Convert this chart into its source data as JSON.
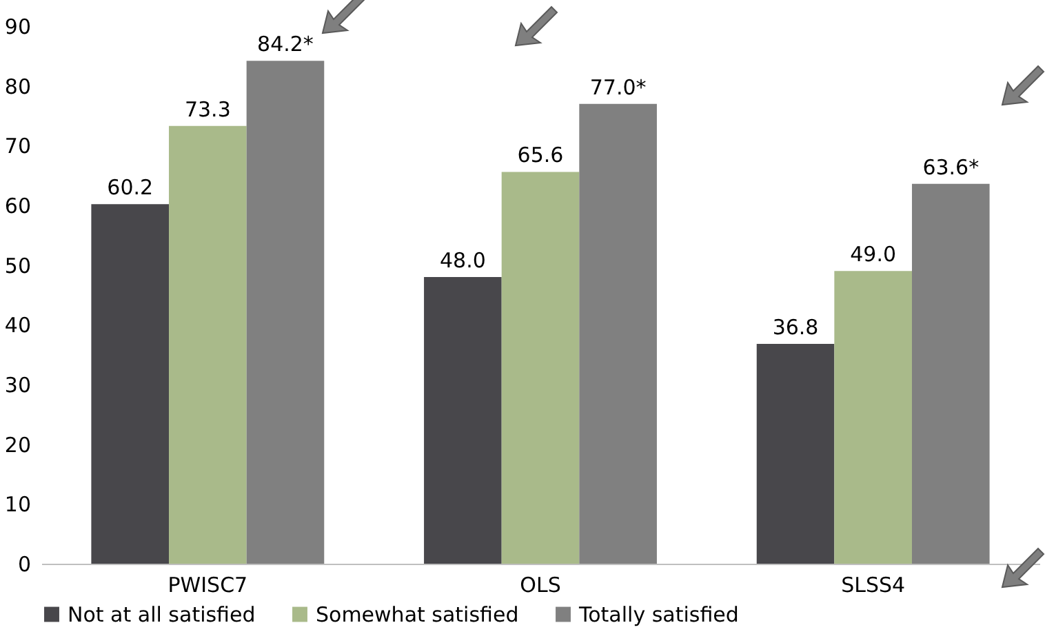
{
  "chart_data": {
    "type": "bar",
    "categories": [
      "PWISC7",
      "OLS",
      "SLSS4"
    ],
    "series": [
      {
        "name": "Not at all satisfied",
        "color": "#48474b",
        "values": [
          60.2,
          48.0,
          36.8
        ],
        "value_labels": [
          "60.2",
          "48.0",
          "36.8"
        ]
      },
      {
        "name": "Somewhat satisfied",
        "color": "#a9ba8a",
        "values": [
          73.3,
          65.6,
          49.0
        ],
        "value_labels": [
          "73.3",
          "65.6",
          "49.0"
        ]
      },
      {
        "name": "Totally satisfied",
        "color": "#808080",
        "values": [
          84.2,
          77.0,
          63.6
        ],
        "value_labels": [
          "84.2*",
          "77.0*",
          "63.6*"
        ]
      }
    ],
    "ylim": [
      0,
      90
    ],
    "yticks": [
      0,
      10,
      20,
      30,
      40,
      50,
      60,
      70,
      80,
      90
    ],
    "grid": false,
    "legend": "bottom"
  }
}
